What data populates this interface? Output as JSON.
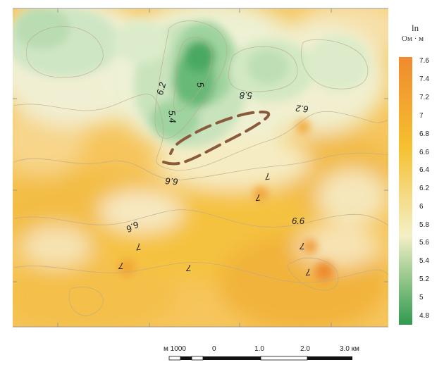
{
  "map": {
    "contour_labels": [
      {
        "text": "6.2",
        "rotate": -75
      },
      {
        "text": "5",
        "rotate": 80
      },
      {
        "text": "5.4",
        "rotate": 85
      },
      {
        "text": "5.8",
        "rotate": 180
      },
      {
        "text": "6.2",
        "rotate": 185
      },
      {
        "text": "6.6",
        "rotate": 185
      },
      {
        "text": "7",
        "rotate": 170
      },
      {
        "text": "7",
        "rotate": 175
      },
      {
        "text": "6.6",
        "rotate": 150
      },
      {
        "text": "7",
        "rotate": 170
      },
      {
        "text": "6.6",
        "rotate": 0
      },
      {
        "text": "7",
        "rotate": 180
      },
      {
        "text": "7",
        "rotate": 180
      },
      {
        "text": "7",
        "rotate": 180
      },
      {
        "text": "7",
        "rotate": 175
      }
    ]
  },
  "legend": {
    "unit_top": "ln",
    "unit_bottom": "Ом · м",
    "colors": [
      "#2f9a4e",
      "#f4f0c6",
      "#f5c030",
      "#f08a2e"
    ],
    "ticks": [
      "7.6",
      "7.4",
      "7.2",
      "7",
      "6.8",
      "6.6",
      "6.4",
      "6.2",
      "6",
      "5.8",
      "5.6",
      "5.4",
      "5.2",
      "5",
      "4.8"
    ]
  },
  "scale": {
    "labels": [
      "м 1000",
      "0",
      "1.0",
      "2.0",
      "3.0 км"
    ]
  }
}
